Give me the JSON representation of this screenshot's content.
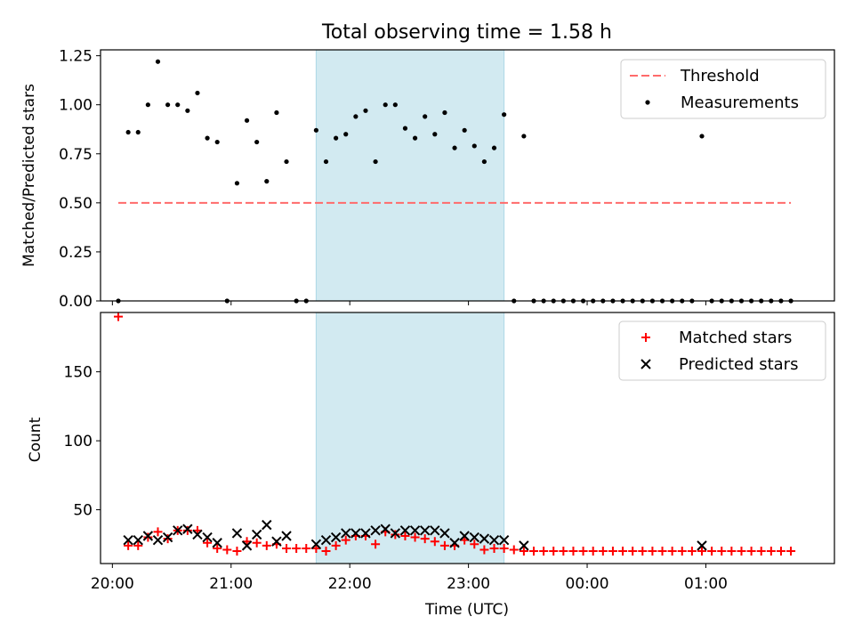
{
  "chart_data": [
    {
      "type": "scatter",
      "title": "Total observing time = 1.58 h",
      "xlabel": "",
      "ylabel": "Matched/Predicted stars",
      "ylim": [
        0,
        1.28
      ],
      "yticks": [
        0.0,
        0.25,
        0.5,
        0.75,
        1.0,
        1.25
      ],
      "ytick_labels": [
        "0.00",
        "0.25",
        "0.50",
        "0.75",
        "1.00",
        "1.25"
      ],
      "xlim": [
        "19:54",
        "02:05"
      ],
      "highlight_span": {
        "start": "21:43",
        "end": "23:18",
        "color": "#add8e6"
      },
      "legend": {
        "position": "upper right",
        "entries": [
          "Threshold",
          "Measurements"
        ]
      },
      "series": [
        {
          "name": "Threshold",
          "kind": "line",
          "color": "#ff6b6b",
          "style": "dashed",
          "x": [
            "20:03",
            "01:43"
          ],
          "y": [
            0.5,
            0.5
          ]
        },
        {
          "name": "Measurements",
          "kind": "scatter",
          "color": "#000000",
          "x": [
            "20:03",
            "20:08",
            "20:13",
            "20:18",
            "20:23",
            "20:28",
            "20:33",
            "20:38",
            "20:43",
            "20:48",
            "20:53",
            "20:58",
            "21:03",
            "21:08",
            "21:13",
            "21:18",
            "21:23",
            "21:28",
            "21:33",
            "21:38",
            "21:43",
            "21:48",
            "21:53",
            "21:58",
            "22:03",
            "22:08",
            "22:13",
            "22:18",
            "22:23",
            "22:28",
            "22:33",
            "22:38",
            "22:43",
            "22:48",
            "22:53",
            "22:58",
            "23:03",
            "23:08",
            "23:13",
            "23:18",
            "23:23",
            "23:28",
            "23:33",
            "23:38",
            "23:43",
            "23:48",
            "23:53",
            "23:58",
            "00:03",
            "00:08",
            "00:13",
            "00:18",
            "00:23",
            "00:28",
            "00:33",
            "00:38",
            "00:43",
            "00:48",
            "00:53",
            "00:58",
            "01:03",
            "01:08",
            "01:13",
            "01:18",
            "01:23",
            "01:28",
            "01:33",
            "01:38",
            "01:43"
          ],
          "y": [
            0.0,
            0.86,
            0.86,
            1.0,
            1.22,
            1.0,
            1.0,
            0.97,
            1.06,
            0.83,
            0.81,
            0.0,
            0.6,
            0.92,
            0.81,
            0.61,
            0.96,
            0.71,
            0.0,
            0.0,
            0.87,
            0.71,
            0.83,
            0.85,
            0.94,
            0.97,
            0.71,
            1.0,
            1.0,
            0.88,
            0.83,
            0.94,
            0.85,
            0.96,
            0.78,
            0.87,
            0.79,
            0.71,
            0.78,
            0.95,
            0.0,
            0.84,
            0.0,
            0.0,
            0.0,
            0.0,
            0.0,
            0.0,
            0.0,
            0.0,
            0.0,
            0.0,
            0.0,
            0.0,
            0.0,
            0.0,
            0.0,
            0.0,
            0.0,
            0.84,
            0.0,
            0.0,
            0.0,
            0.0,
            0.0,
            0.0,
            0.0,
            0.0,
            0.0
          ]
        }
      ]
    },
    {
      "type": "scatter",
      "title": "",
      "xlabel": "Time (UTC)",
      "ylabel": "Count",
      "ylim": [
        11,
        193
      ],
      "yticks": [
        50,
        100,
        150
      ],
      "ytick_labels": [
        "50",
        "100",
        "150"
      ],
      "xlim": [
        "19:54",
        "02:05"
      ],
      "xticks": [
        "20:00",
        "21:00",
        "22:00",
        "23:00",
        "00:00",
        "01:00"
      ],
      "highlight_span": {
        "start": "21:43",
        "end": "23:18",
        "color": "#add8e6"
      },
      "legend": {
        "position": "upper right",
        "entries": [
          "Matched stars",
          "Predicted stars"
        ]
      },
      "series": [
        {
          "name": "Matched stars",
          "kind": "scatter",
          "marker": "plus",
          "color": "#ff0000",
          "x": [
            "20:03",
            "20:08",
            "20:13",
            "20:18",
            "20:23",
            "20:28",
            "20:33",
            "20:38",
            "20:43",
            "20:48",
            "20:53",
            "20:58",
            "21:03",
            "21:08",
            "21:13",
            "21:18",
            "21:23",
            "21:28",
            "21:33",
            "21:38",
            "21:43",
            "21:48",
            "21:53",
            "21:58",
            "22:03",
            "22:08",
            "22:13",
            "22:18",
            "22:23",
            "22:28",
            "22:33",
            "22:38",
            "22:43",
            "22:48",
            "22:53",
            "22:58",
            "23:03",
            "23:08",
            "23:13",
            "23:18",
            "23:23",
            "23:28",
            "23:33",
            "23:38",
            "23:43",
            "23:48",
            "23:53",
            "23:58",
            "00:03",
            "00:08",
            "00:13",
            "00:18",
            "00:23",
            "00:28",
            "00:33",
            "00:38",
            "00:43",
            "00:48",
            "00:53",
            "00:58",
            "01:03",
            "01:08",
            "01:13",
            "01:18",
            "01:23",
            "01:28",
            "01:33",
            "01:38",
            "01:43"
          ],
          "y": [
            190,
            24,
            24,
            30,
            34,
            29,
            35,
            35,
            35,
            26,
            22,
            21,
            20,
            27,
            26,
            24,
            25,
            22,
            22,
            22,
            22,
            20,
            24,
            28,
            31,
            31,
            25,
            34,
            32,
            31,
            30,
            29,
            27,
            24,
            24,
            28,
            25,
            21,
            22,
            22,
            21,
            20,
            20,
            20,
            20,
            20,
            20,
            20,
            20,
            20,
            20,
            20,
            20,
            20,
            20,
            20,
            20,
            20,
            20,
            20,
            20,
            20,
            20,
            20,
            20,
            20,
            20,
            20,
            20
          ]
        },
        {
          "name": "Predicted stars",
          "kind": "scatter",
          "marker": "x",
          "color": "#000000",
          "x": [
            "20:08",
            "20:13",
            "20:18",
            "20:23",
            "20:28",
            "20:33",
            "20:38",
            "20:43",
            "20:48",
            "20:53",
            "21:03",
            "21:08",
            "21:13",
            "21:18",
            "21:23",
            "21:28",
            "21:43",
            "21:48",
            "21:53",
            "21:58",
            "22:03",
            "22:08",
            "22:13",
            "22:18",
            "22:23",
            "22:28",
            "22:33",
            "22:38",
            "22:43",
            "22:48",
            "22:53",
            "22:58",
            "23:03",
            "23:08",
            "23:13",
            "23:18",
            "23:28",
            "00:58"
          ],
          "y": [
            28,
            28,
            31,
            28,
            30,
            35,
            36,
            32,
            30,
            26,
            33,
            24,
            32,
            39,
            27,
            31,
            25,
            28,
            30,
            33,
            33,
            33,
            35,
            36,
            33,
            35,
            35,
            35,
            35,
            33,
            26,
            31,
            30,
            29,
            28,
            28,
            24,
            24
          ]
        }
      ]
    }
  ]
}
